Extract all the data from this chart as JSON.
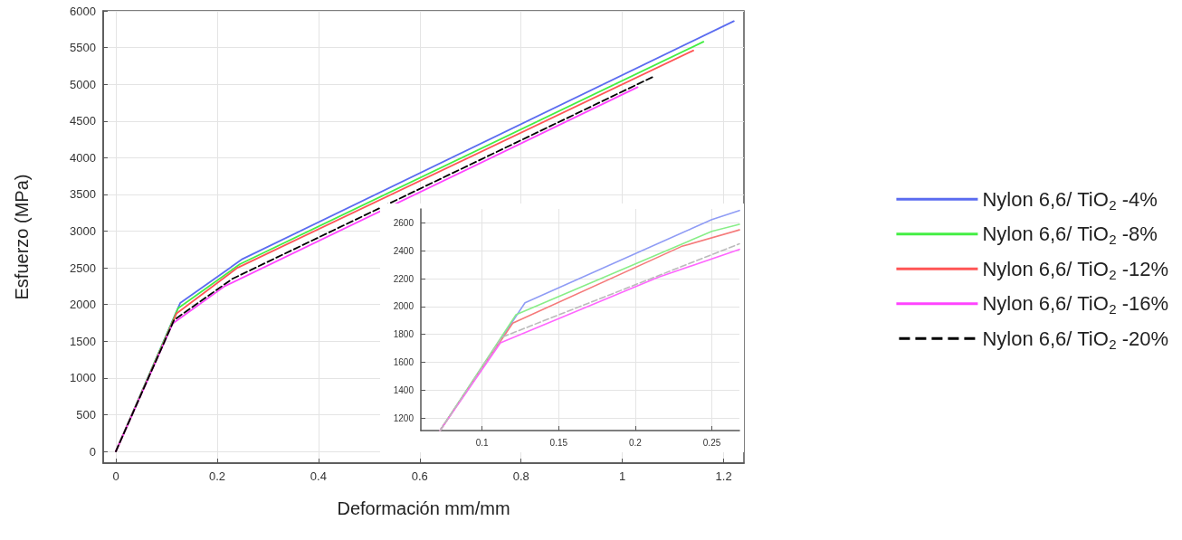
{
  "chart_data": [
    {
      "type": "line",
      "xlabel": "Deformación mm/mm",
      "ylabel": "Esfuerzo (MPa)",
      "xlim": [
        -0.025,
        1.24
      ],
      "ylim": [
        -160,
        6000
      ],
      "xticks": [
        0,
        0.2,
        0.4,
        0.6,
        0.8,
        1,
        1.2
      ],
      "yticks": [
        0,
        500,
        1000,
        1500,
        2000,
        2500,
        3000,
        3500,
        4000,
        4500,
        5000,
        5500,
        6000
      ],
      "grid": true,
      "legend": "right",
      "marker": "none",
      "series": [
        {
          "name": "Nylon 6,6/ TiO$_{2}$ -4%",
          "color": "#5b6cf0",
          "x": [
            0,
            0.127,
            0.25,
            1.22
          ],
          "values": [
            0,
            2020,
            2620,
            5860
          ]
        },
        {
          "name": "Nylon 6,6/ TiO$_{2}$ -8%",
          "color": "#44ee44",
          "x": [
            0,
            0.123,
            0.245,
            1.16
          ],
          "values": [
            0,
            1950,
            2550,
            5580
          ]
        },
        {
          "name": "Nylon 6,6/ TiO$_{2}$ -12%",
          "color": "#ff5555",
          "x": [
            0,
            0.12,
            0.24,
            1.14
          ],
          "values": [
            0,
            1880,
            2500,
            5460
          ]
        },
        {
          "name": "Nylon 6,6/ TiO$_{2}$ -16%",
          "color": "#ff44ff",
          "x": [
            0,
            0.112,
            0.215,
            1.03
          ],
          "values": [
            0,
            1740,
            2250,
            4960
          ]
        },
        {
          "name": "Nylon 6,6/ TiO$_{2}$ -20%",
          "color": "#000000",
          "line_style": "dashed",
          "x": [
            0,
            0.115,
            0.23,
            1.06
          ],
          "values": [
            0,
            1790,
            2350,
            5100
          ]
        }
      ]
    },
    {
      "type": "line",
      "xlim": [
        0.06,
        0.268
      ],
      "ylim": [
        1110,
        2700
      ],
      "xticks": [
        0.1,
        0.15,
        0.2,
        0.25
      ],
      "yticks": [
        1200,
        1400,
        1600,
        1800,
        2000,
        2200,
        2400,
        2600
      ],
      "grid": true,
      "marker": "none",
      "series": [
        {
          "color": "#8f9cf5",
          "x": [
            0.0725,
            0.128,
            0.25,
            0.268
          ],
          "values": [
            1110,
            2027,
            2624,
            2689
          ]
        },
        {
          "color": "#88ee88",
          "x": [
            0.0725,
            0.122,
            0.25,
            0.268
          ],
          "values": [
            1110,
            1940,
            2540,
            2590
          ]
        },
        {
          "color": "#f57a7a",
          "x": [
            0.0725,
            0.12,
            0.23,
            0.268
          ],
          "values": [
            1110,
            1880,
            2430,
            2550
          ]
        },
        {
          "color": "#ff66ff",
          "x": [
            0.0725,
            0.112,
            0.215,
            0.268
          ],
          "values": [
            1110,
            1740,
            2210,
            2410
          ]
        },
        {
          "color": "#bbbbbb",
          "line_style": "dashed",
          "x": [
            0.0725,
            0.113,
            0.268
          ],
          "values": [
            1110,
            1780,
            2450
          ]
        }
      ]
    }
  ]
}
